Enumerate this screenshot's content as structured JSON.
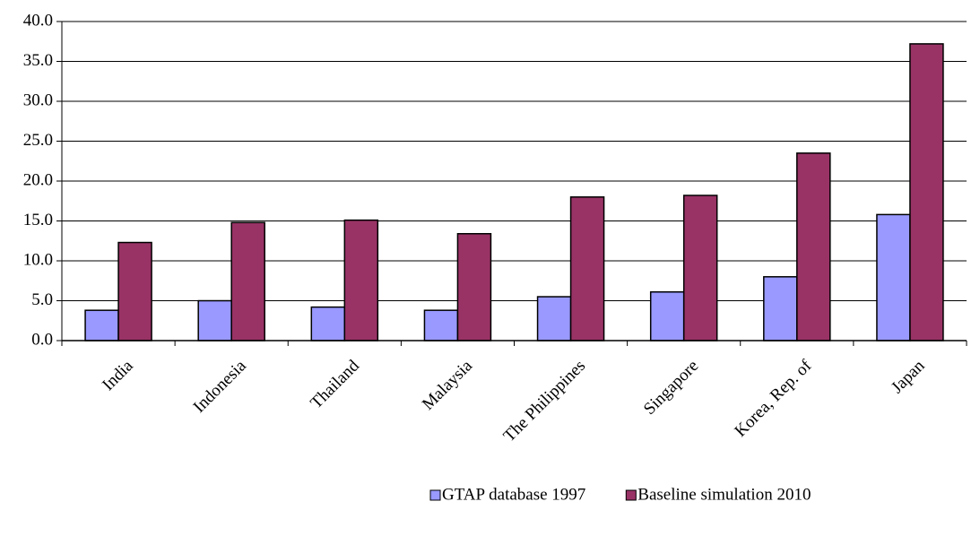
{
  "chart_data": {
    "type": "bar",
    "categories": [
      "India",
      "Indonesia",
      "Thailand",
      "Malaysia",
      "The Philippines",
      "Singapore",
      "Korea, Rep. of",
      "Japan"
    ],
    "series": [
      {
        "name": "GTAP database 1997",
        "color": "#9999ff",
        "values": [
          3.8,
          5.0,
          4.2,
          3.8,
          5.5,
          6.1,
          8.0,
          15.8
        ]
      },
      {
        "name": "Baseline simulation 2010",
        "color": "#993366",
        "values": [
          12.3,
          14.8,
          15.1,
          13.4,
          18.0,
          18.2,
          23.5,
          37.2
        ]
      }
    ],
    "ylim": [
      0,
      40
    ],
    "yticks": [
      {
        "value": 0,
        "label": "0.0"
      },
      {
        "value": 5,
        "label": "5.0"
      },
      {
        "value": 10,
        "label": "10.0"
      },
      {
        "value": 15,
        "label": "15.0"
      },
      {
        "value": 20,
        "label": "20.0"
      },
      {
        "value": 25,
        "label": "25.0"
      },
      {
        "value": 30,
        "label": "30.0"
      },
      {
        "value": 35,
        "label": "35.0"
      },
      {
        "value": 40,
        "label": "40.0"
      }
    ],
    "grid": true,
    "legend": "bottom"
  }
}
